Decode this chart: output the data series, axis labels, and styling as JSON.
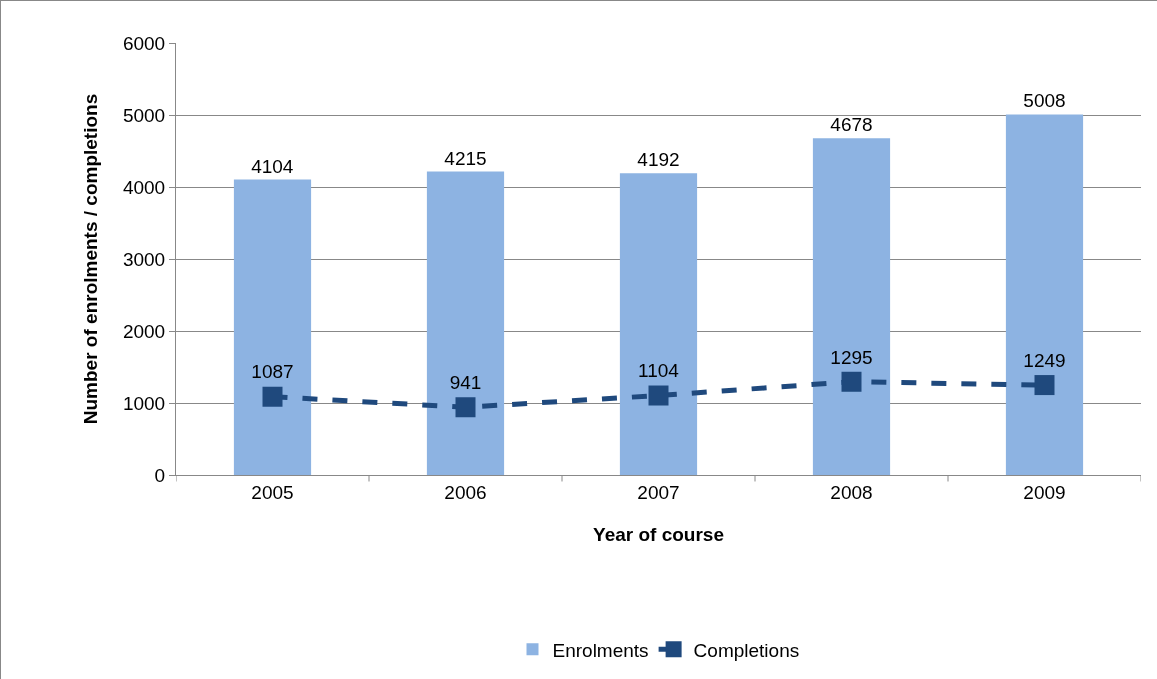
{
  "chart_data": {
    "type": "bar",
    "xlabel": "Year of course",
    "ylabel": "Number of enrolments / completions",
    "categories": [
      "2005",
      "2006",
      "2007",
      "2008",
      "2009"
    ],
    "series": [
      {
        "name": "Enrolments",
        "color": "#8db3e2",
        "values": [
          4104,
          4215,
          4192,
          4678,
          5008
        ]
      },
      {
        "name": "Completions",
        "type": "line",
        "color": "#1f497d",
        "values": [
          1087,
          941,
          1104,
          1295,
          1249
        ],
        "marker": "square",
        "line_style": "dashed"
      }
    ],
    "ylim": [
      0,
      6000
    ],
    "yticks": [
      0,
      1000,
      2000,
      3000,
      4000,
      5000,
      6000
    ],
    "grid": "y",
    "legend": "bottom",
    "data_labels": true
  }
}
